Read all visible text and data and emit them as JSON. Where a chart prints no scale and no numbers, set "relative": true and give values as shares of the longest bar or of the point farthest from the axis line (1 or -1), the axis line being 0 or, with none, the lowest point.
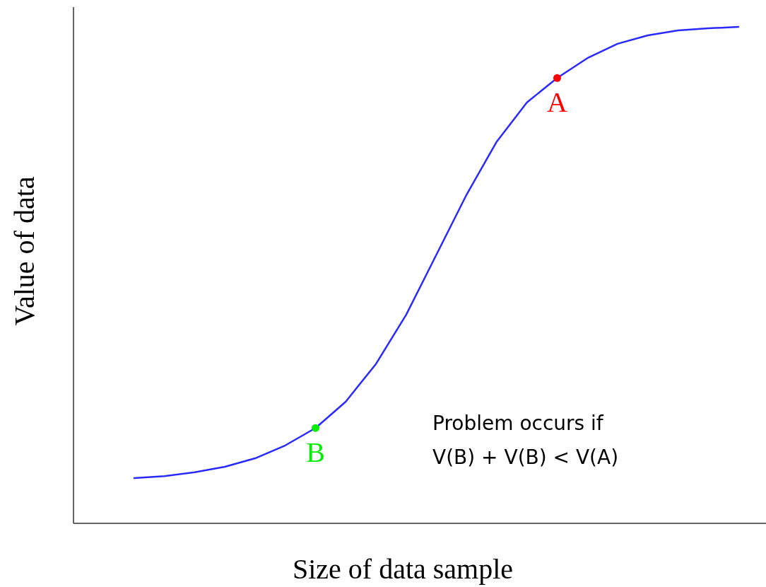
{
  "chart_data": {
    "type": "line",
    "relative": true,
    "xlabel": "Size of data sample",
    "ylabel": "Value of data",
    "categories": [
      null,
      null,
      null,
      null,
      null,
      null,
      null,
      null,
      null,
      null,
      null,
      null,
      null,
      null,
      null,
      null,
      null,
      null,
      null,
      null,
      null
    ],
    "series": [
      {
        "color": "#2a2aff",
        "values": [
          0.091,
          0.095,
          0.103,
          0.114,
          0.131,
          0.157,
          0.192,
          0.245,
          0.321,
          0.42,
          0.541,
          0.662,
          0.769,
          0.848,
          0.897,
          0.937,
          0.966,
          0.983,
          0.993,
          0.997,
          1
        ],
        "colors": [
          null,
          null,
          null,
          null,
          null,
          null,
          "#00ee00",
          null,
          null,
          null,
          null,
          null,
          null,
          null,
          "#ff0000",
          null,
          null,
          null,
          null,
          null,
          null
        ]
      }
    ],
    "annotations": [
      {
        "text": "A",
        "y": 0.897
      },
      {
        "text": "B",
        "y": 0.192
      },
      "Problem occurs if\nV(B) + V(B) < V(A)"
    ]
  }
}
